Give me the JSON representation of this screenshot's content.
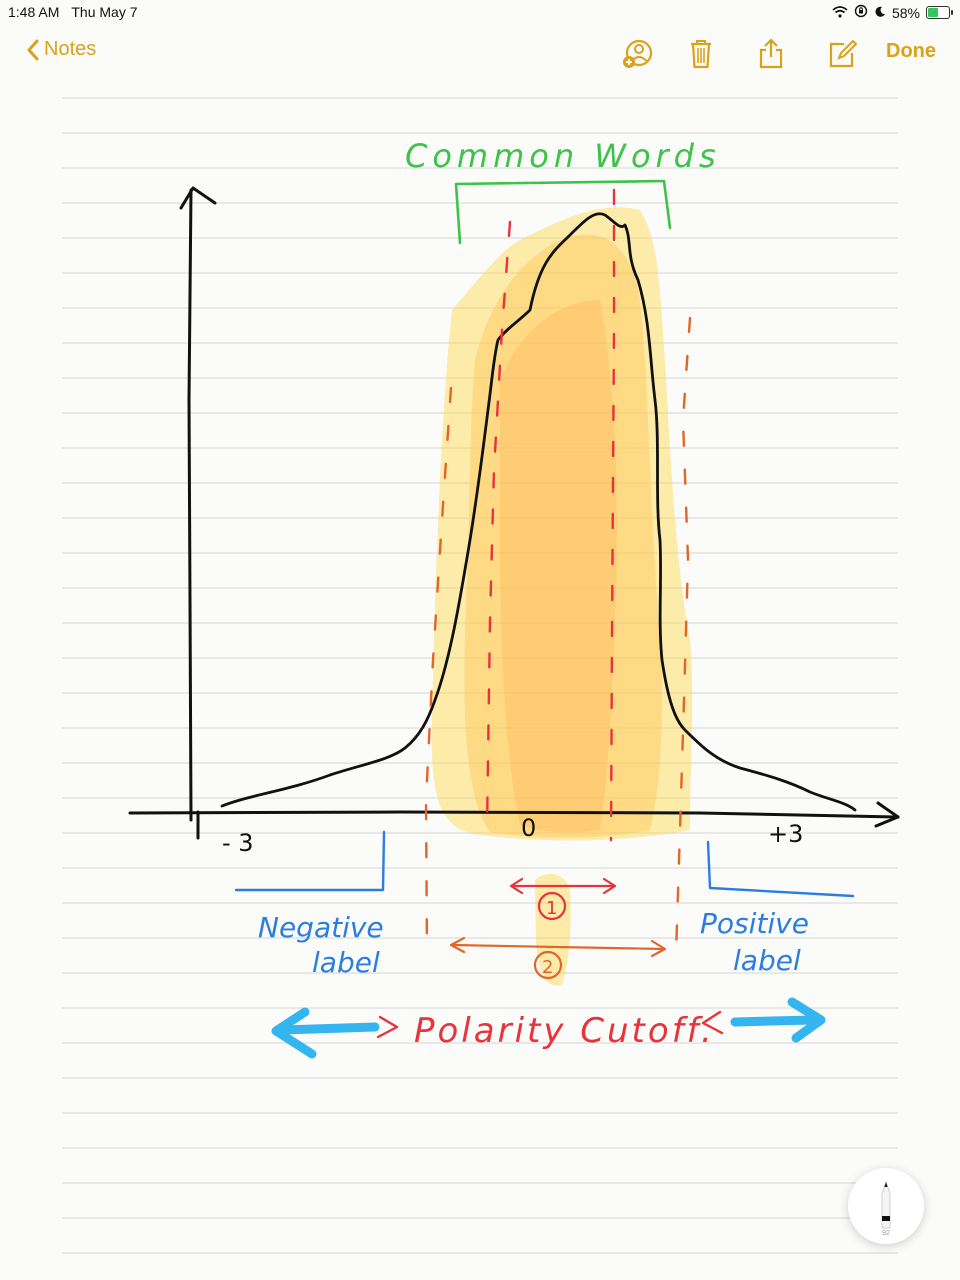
{
  "status_bar": {
    "time": "1:48 AM",
    "date": "Thu May 7",
    "battery_percent": "58%",
    "battery_level": 0.58
  },
  "toolbar": {
    "back_label": "Notes",
    "done_label": "Done",
    "icons": [
      "add-person-icon",
      "trash-icon",
      "share-icon",
      "compose-icon"
    ]
  },
  "sketch": {
    "title": "Common Words",
    "x_min_label": "- 3",
    "x_mid_label": "0",
    "x_max_label": "+3",
    "negative_label": [
      "Negative",
      "label"
    ],
    "positive_label": [
      "Positive",
      "label"
    ],
    "marker_1": "1",
    "marker_2": "2",
    "bottom_caption": "Polarity Cutoff.",
    "colors": {
      "ink": "#111111",
      "green": "#3fc24a",
      "blue": "#2b7ee0",
      "red": "#e8323c",
      "orange": "#e0662a",
      "highlight": "#ffd84a",
      "arrow": "#35b5f0"
    }
  },
  "pencil": {
    "tip_label": "92"
  }
}
